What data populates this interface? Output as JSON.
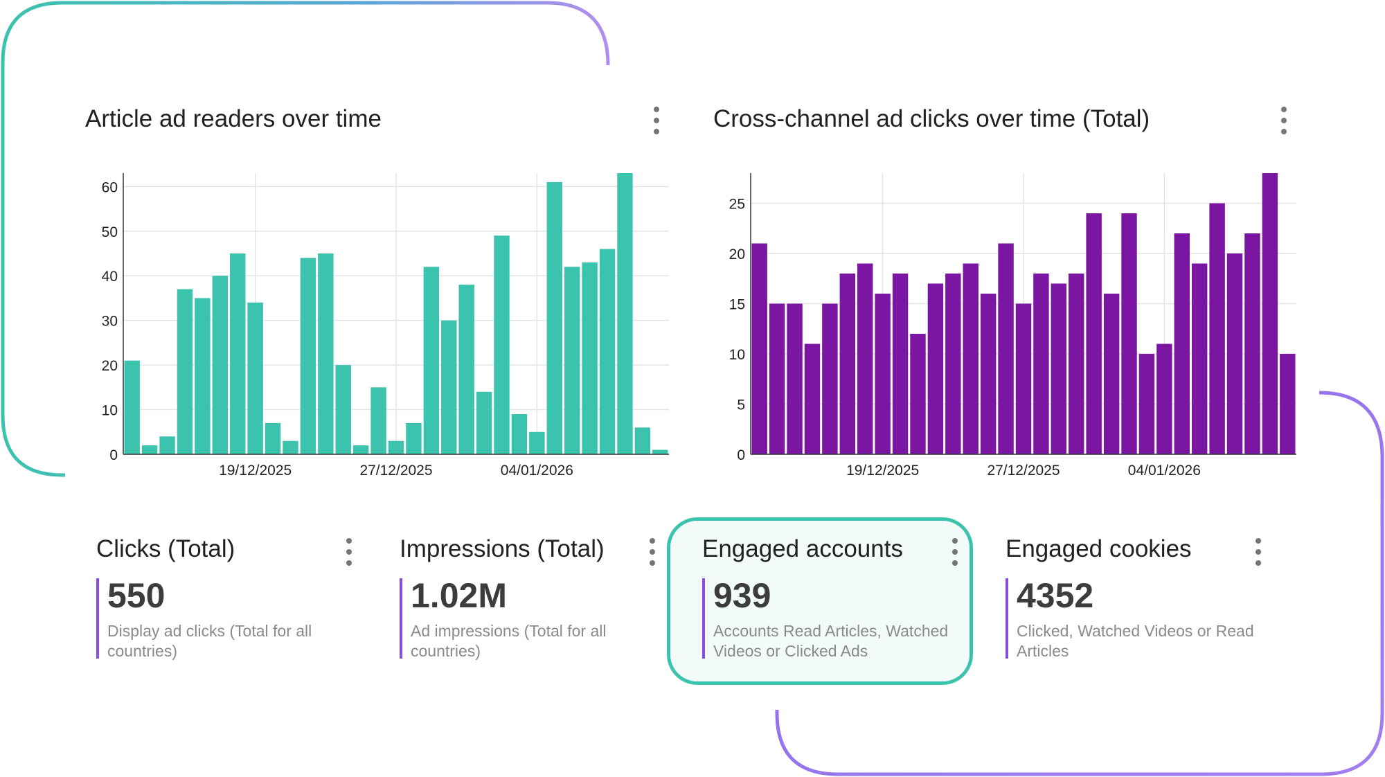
{
  "charts": [
    {
      "title": "Article ad readers over time",
      "color": "#3cc3ad",
      "chart_data": {
        "type": "bar",
        "title": "Article ad readers over time",
        "xlabel": "",
        "ylabel": "",
        "ylim": [
          0,
          63
        ],
        "yticks": [
          "0",
          "10",
          "20",
          "30",
          "40",
          "50",
          "60"
        ],
        "xticks": [
          "19/12/2025",
          "27/12/2025",
          "04/01/2026"
        ],
        "grid": true,
        "values": [
          21,
          2,
          4,
          37,
          35,
          40,
          45,
          34,
          7,
          3,
          44,
          45,
          20,
          2,
          15,
          3,
          7,
          42,
          30,
          38,
          14,
          49,
          9,
          5,
          61,
          42,
          43,
          46,
          63,
          6,
          1
        ]
      }
    },
    {
      "title": "Cross-channel ad clicks over time (Total)",
      "color": "#7b16a3",
      "chart_data": {
        "type": "bar",
        "title": "Cross-channel ad clicks over time (Total)",
        "xlabel": "",
        "ylabel": "",
        "ylim": [
          0,
          28
        ],
        "yticks": [
          "0",
          "5",
          "10",
          "15",
          "20",
          "25"
        ],
        "xticks": [
          "19/12/2025",
          "27/12/2025",
          "04/01/2026"
        ],
        "grid": true,
        "values": [
          21,
          15,
          15,
          11,
          15,
          18,
          19,
          16,
          18,
          12,
          17,
          18,
          19,
          16,
          21,
          15,
          18,
          17,
          18,
          24,
          16,
          24,
          10,
          11,
          22,
          19,
          25,
          20,
          22,
          28,
          10
        ]
      }
    }
  ],
  "metrics": [
    {
      "title": "Clicks (Total)",
      "value": "550",
      "description": "Display ad clicks (Total for all countries)",
      "accent": "#8a4fe0"
    },
    {
      "title": "Impressions (Total)",
      "value": "1.02M",
      "description": "Ad impressions (Total for all countries)",
      "accent": "#8a4fe0"
    },
    {
      "title": "Engaged accounts",
      "value": "939",
      "description": "Accounts Read Articles, Watched Videos or Clicked Ads",
      "accent": "#8a4fe0"
    },
    {
      "title": "Engaged cookies",
      "value": "4352",
      "description": "Clicked, Watched Videos or Read Articles",
      "accent": "#8a4fe0"
    }
  ],
  "icons": {
    "menu": "more-vert-icon"
  },
  "colors": {
    "teal": "#3cc3ad",
    "purple": "#7b16a3",
    "highlight_border": "#3cc3ad"
  }
}
